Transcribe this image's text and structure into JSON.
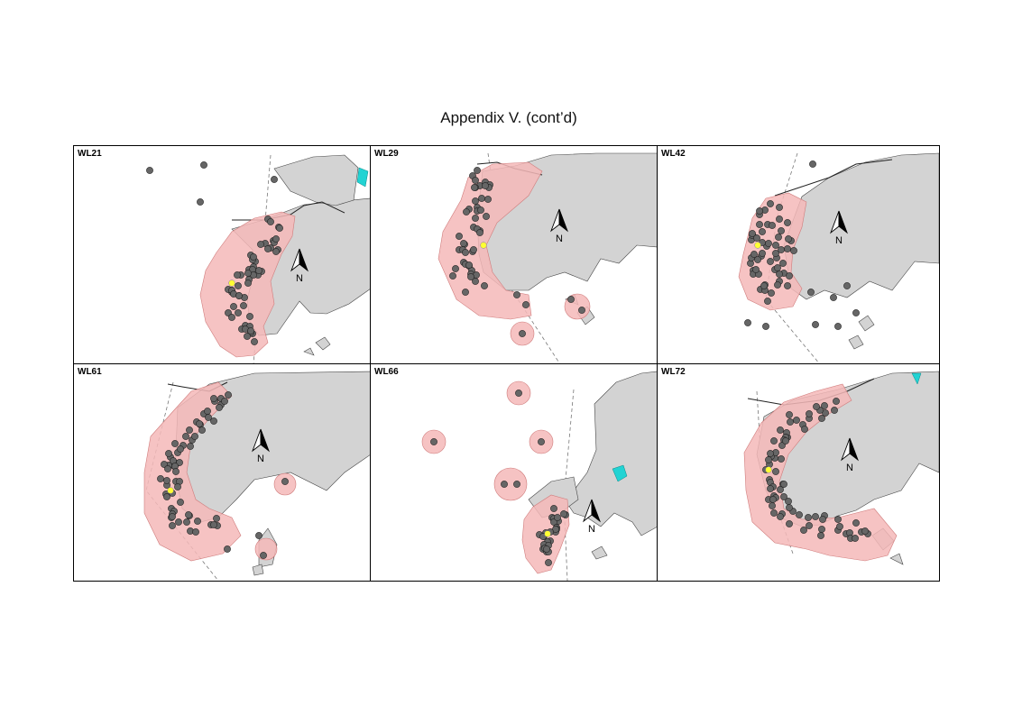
{
  "title": "Appendix V.  (cont’d)",
  "north_label": "N",
  "colors": {
    "land": "#d3d3d3",
    "home_range": "#f4b9b9",
    "home_range_edge": "#d07c7c",
    "location_point": "#666666",
    "capture_point": "#ffff33",
    "water_feature": "#22d3d3"
  },
  "panels": [
    {
      "id": "WL21",
      "label": "WL21"
    },
    {
      "id": "WL29",
      "label": "WL29"
    },
    {
      "id": "WL42",
      "label": "WL42"
    },
    {
      "id": "WL61",
      "label": "WL61"
    },
    {
      "id": "WL66",
      "label": "WL66"
    },
    {
      "id": "WL72",
      "label": "WL72"
    }
  ]
}
